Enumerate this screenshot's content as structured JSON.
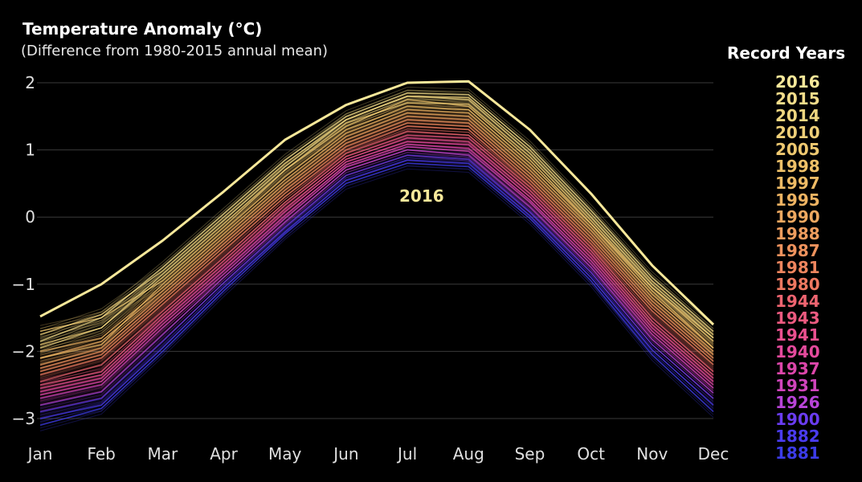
{
  "chart_data": {
    "type": "line",
    "title": "Temperature Anomaly (°C)",
    "subtitle": "(Difference from 1980-2015 annual mean)",
    "categories": [
      "Jan",
      "Feb",
      "Mar",
      "Apr",
      "May",
      "Jun",
      "Jul",
      "Aug",
      "Sep",
      "Oct",
      "Nov",
      "Dec"
    ],
    "y_ticks": [
      "2",
      "1",
      "0",
      "−1",
      "−2",
      "−3"
    ],
    "y_tick_values": [
      2,
      1,
      0,
      -1,
      -2,
      -3
    ],
    "ylim": [
      -3.3,
      2.25
    ],
    "grid": true,
    "legend_placement": "right",
    "legend_title": "Record Years",
    "highlight_series": {
      "name": "2016",
      "color": "#f7e89a",
      "values": [
        -1.48,
        -1.0,
        -0.35,
        0.38,
        1.15,
        1.67,
        2.0,
        2.02,
        1.3,
        0.35,
        -0.72,
        -1.6
      ]
    },
    "annotation": "2016",
    "series": [
      {
        "name": "2015",
        "color": "#f2dc8a",
        "values": [
          -1.85,
          -1.5,
          -0.75,
          0.05,
          0.85,
          1.5,
          1.85,
          1.82,
          1.05,
          0.1,
          -0.9,
          -1.7
        ]
      },
      {
        "name": "2014",
        "color": "#eed680",
        "values": [
          -1.95,
          -1.65,
          -0.85,
          -0.05,
          0.75,
          1.45,
          1.8,
          1.75,
          0.95,
          0.0,
          -1.0,
          -1.8
        ]
      },
      {
        "name": "2010",
        "color": "#eecf78",
        "values": [
          -1.75,
          -1.45,
          -0.8,
          0.0,
          0.8,
          1.45,
          1.8,
          1.78,
          1.0,
          0.05,
          -0.95,
          -1.75
        ]
      },
      {
        "name": "2005",
        "color": "#eec870",
        "values": [
          -1.9,
          -1.65,
          -0.9,
          -0.1,
          0.7,
          1.4,
          1.7,
          1.68,
          0.9,
          -0.05,
          -1.05,
          -1.85
        ]
      },
      {
        "name": "1998",
        "color": "#eec068",
        "values": [
          -1.7,
          -1.5,
          -0.95,
          -0.15,
          0.7,
          1.35,
          1.75,
          1.65,
          0.85,
          -0.1,
          -1.1,
          -1.95
        ]
      },
      {
        "name": "1997",
        "color": "#eebb65",
        "values": [
          -2.1,
          -1.9,
          -1.0,
          -0.2,
          0.6,
          1.3,
          1.65,
          1.6,
          0.8,
          -0.1,
          -1.05,
          -1.8
        ]
      },
      {
        "name": "1995",
        "color": "#eeb362",
        "values": [
          -2.0,
          -1.8,
          -1.05,
          -0.25,
          0.55,
          1.25,
          1.6,
          1.55,
          0.75,
          -0.15,
          -1.15,
          -1.95
        ]
      },
      {
        "name": "1990",
        "color": "#eea860",
        "values": [
          -2.1,
          -1.85,
          -1.1,
          -0.3,
          0.5,
          1.2,
          1.55,
          1.5,
          0.7,
          -0.2,
          -1.2,
          -2.0
        ]
      },
      {
        "name": "1988",
        "color": "#ee9d5e",
        "values": [
          -2.2,
          -1.95,
          -1.15,
          -0.35,
          0.45,
          1.15,
          1.5,
          1.45,
          0.65,
          -0.25,
          -1.25,
          -2.05
        ]
      },
      {
        "name": "1987",
        "color": "#ee925d",
        "values": [
          -2.25,
          -2.0,
          -1.2,
          -0.4,
          0.4,
          1.1,
          1.45,
          1.4,
          0.6,
          -0.3,
          -1.3,
          -2.1
        ]
      },
      {
        "name": "1981",
        "color": "#ee855e",
        "values": [
          -2.3,
          -2.05,
          -1.25,
          -0.45,
          0.35,
          1.05,
          1.4,
          1.35,
          0.55,
          -0.35,
          -1.35,
          -2.15
        ]
      },
      {
        "name": "1980",
        "color": "#ee7860",
        "values": [
          -2.35,
          -2.1,
          -1.3,
          -0.5,
          0.3,
          1.0,
          1.35,
          1.3,
          0.5,
          -0.4,
          -1.4,
          -2.2
        ]
      },
      {
        "name": "1944",
        "color": "#ee6470",
        "values": [
          -2.45,
          -2.2,
          -1.4,
          -0.6,
          0.22,
          0.95,
          1.28,
          1.22,
          0.45,
          -0.45,
          -1.5,
          -2.3
        ]
      },
      {
        "name": "1943",
        "color": "#ec5a80",
        "values": [
          -2.5,
          -2.3,
          -1.45,
          -0.65,
          0.18,
          0.9,
          1.22,
          1.18,
          0.4,
          -0.5,
          -1.55,
          -2.35
        ]
      },
      {
        "name": "1941",
        "color": "#ea5090",
        "values": [
          -2.55,
          -2.35,
          -1.5,
          -0.7,
          0.12,
          0.86,
          1.18,
          1.12,
          0.35,
          -0.55,
          -1.6,
          -2.4
        ]
      },
      {
        "name": "1940",
        "color": "#e44a9c",
        "values": [
          -2.6,
          -2.4,
          -1.55,
          -0.75,
          0.08,
          0.82,
          1.12,
          1.08,
          0.3,
          -0.6,
          -1.65,
          -2.45
        ]
      },
      {
        "name": "1937",
        "color": "#dc46aa",
        "values": [
          -2.65,
          -2.45,
          -1.6,
          -0.8,
          0.02,
          0.78,
          1.08,
          1.02,
          0.25,
          -0.65,
          -1.7,
          -2.5
        ]
      },
      {
        "name": "1931",
        "color": "#d044bc",
        "values": [
          -2.7,
          -2.5,
          -1.65,
          -0.85,
          -0.02,
          0.75,
          1.05,
          0.98,
          0.22,
          -0.7,
          -1.75,
          -2.55
        ]
      },
      {
        "name": "1926",
        "color": "#b844d8",
        "values": [
          -2.8,
          -2.6,
          -1.75,
          -0.9,
          -0.08,
          0.7,
          1.0,
          0.92,
          0.15,
          -0.75,
          -1.82,
          -2.62
        ]
      },
      {
        "name": "1900",
        "color": "#6a3cf0",
        "values": [
          -2.9,
          -2.7,
          -1.85,
          -0.98,
          -0.15,
          0.62,
          0.92,
          0.86,
          0.08,
          -0.82,
          -1.9,
          -2.7
        ]
      },
      {
        "name": "1882",
        "color": "#4a3cf0",
        "values": [
          -3.0,
          -2.8,
          -1.95,
          -1.05,
          -0.22,
          0.55,
          0.85,
          0.8,
          0.02,
          -0.9,
          -1.98,
          -2.8
        ]
      },
      {
        "name": "1881",
        "color": "#3c3ce8",
        "values": [
          -3.1,
          -2.85,
          -2.0,
          -1.1,
          -0.25,
          0.5,
          0.8,
          0.75,
          -0.02,
          -0.95,
          -2.05,
          -2.9
        ]
      }
    ]
  },
  "legend": {
    "title": "Record Years",
    "items": [
      {
        "label": "2016",
        "color": "#f7e89a"
      },
      {
        "label": "2015",
        "color": "#f2dc8a"
      },
      {
        "label": "2014",
        "color": "#eed680"
      },
      {
        "label": "2010",
        "color": "#eecf78"
      },
      {
        "label": "2005",
        "color": "#eec870"
      },
      {
        "label": "1998",
        "color": "#eec068"
      },
      {
        "label": "1997",
        "color": "#eebb65"
      },
      {
        "label": "1995",
        "color": "#eeb362"
      },
      {
        "label": "1990",
        "color": "#eea860"
      },
      {
        "label": "1988",
        "color": "#ee9d5e"
      },
      {
        "label": "1987",
        "color": "#ee925d"
      },
      {
        "label": "1981",
        "color": "#ee855e"
      },
      {
        "label": "1980",
        "color": "#ee7860"
      },
      {
        "label": "1944",
        "color": "#ee6470"
      },
      {
        "label": "1943",
        "color": "#ec5a80"
      },
      {
        "label": "1941",
        "color": "#ea5090"
      },
      {
        "label": "1940",
        "color": "#e44a9c"
      },
      {
        "label": "1937",
        "color": "#dc46aa"
      },
      {
        "label": "1931",
        "color": "#d044bc"
      },
      {
        "label": "1926",
        "color": "#b844d8"
      },
      {
        "label": "1900",
        "color": "#6a3cf0"
      },
      {
        "label": "1882",
        "color": "#4a3cf0"
      },
      {
        "label": "1881",
        "color": "#3c3ce8"
      }
    ]
  }
}
